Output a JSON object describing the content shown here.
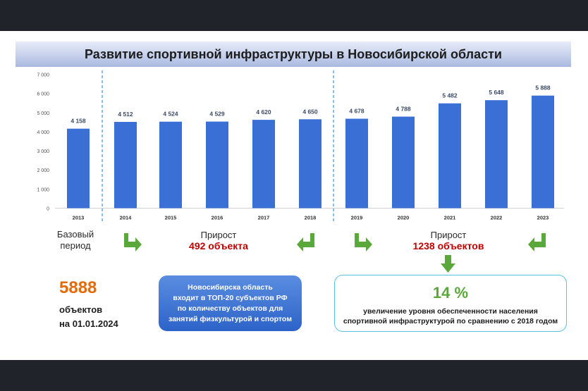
{
  "title": "Развитие спортивной инфраструктуры в Новосибирской области",
  "chart_data": {
    "type": "bar",
    "categories": [
      "2013",
      "2014",
      "2015",
      "2016",
      "2017",
      "2018",
      "2019",
      "2020",
      "2021",
      "2022",
      "2023"
    ],
    "values": [
      4158,
      4512,
      4524,
      4529,
      4620,
      4650,
      4678,
      4788,
      5482,
      5648,
      5888
    ],
    "value_labels": [
      "4 158",
      "4 512",
      "4 524",
      "4 529",
      "4 620",
      "4 650",
      "4 678",
      "4 788",
      "5 482",
      "5 648",
      "5 888"
    ],
    "y_ticks": [
      0,
      1000,
      2000,
      3000,
      4000,
      5000,
      6000,
      7000
    ],
    "y_tick_labels": [
      "0",
      "1 000",
      "2 000",
      "3 000",
      "4 000",
      "5 000",
      "6 000",
      "7 000"
    ],
    "ylim": [
      0,
      7000
    ],
    "grid": false,
    "bar_color": "#3a6fd6"
  },
  "annotations": {
    "base_label_1": "Базовый",
    "base_label_2": "период",
    "growth1_label": "Прирост",
    "growth1_value": "492 объекта",
    "growth2_label": "Прирост",
    "growth2_value": "1238 объектов"
  },
  "summary": {
    "count": "5888",
    "count_text_1": "объектов",
    "count_text_2": "на 01.01.2024",
    "box_lines": [
      "Новосибирска область",
      "входит в ТОП-20 субъектов РФ",
      "по количеству объектов для",
      "занятий физкультурой и спортом"
    ],
    "percent": "14 %",
    "percent_desc_1": "увеличение уровня обеспеченности населения",
    "percent_desc_2": "спортивной инфраструктурой по сравнению с 2018 годом"
  },
  "colors": {
    "accent_green": "#5aa83a",
    "accent_red": "#c00000",
    "accent_orange": "#e36c09",
    "divider_blue": "#4a90d9"
  }
}
